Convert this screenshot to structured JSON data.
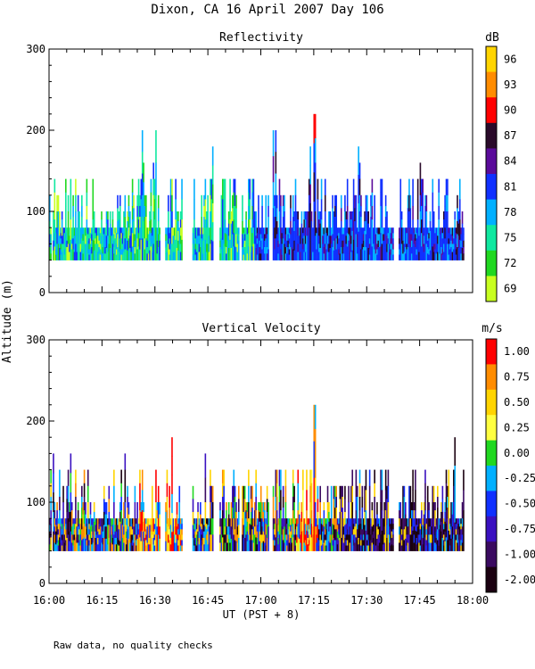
{
  "chart_data": [
    {
      "type": "heatmap",
      "figure_title": "Dixon, CA 16 April 2007  Day 106",
      "title": "Reflectivity",
      "ylabel": "Altitude (m)",
      "xlabel": "UT  (PST + 8)",
      "ylim": [
        0,
        300
      ],
      "yticks": [
        "0",
        "100",
        "200",
        "300"
      ],
      "xlim_minutes": [
        0,
        120
      ],
      "xticks": [
        "16:00",
        "16:15",
        "16:30",
        "16:45",
        "17:00",
        "17:15",
        "17:30",
        "17:45",
        "18:00"
      ],
      "colorbar": {
        "unit": "dB",
        "labels": [
          "96",
          "93",
          "90",
          "87",
          "84",
          "81",
          "78",
          "75",
          "72",
          "69"
        ],
        "colors": [
          "#ffd400",
          "#ff8c00",
          "#ff0000",
          "#2a0a2a",
          "#5a0a9a",
          "#1030ff",
          "#00b0ff",
          "#10e8a0",
          "#20d820",
          "#c8ff20"
        ]
      },
      "cloud_base_m": 40,
      "typical_top_m": 80,
      "peak": {
        "time_minutes": 75,
        "top_m": 220
      }
    },
    {
      "type": "heatmap",
      "title": "Vertical Velocity",
      "ylim": [
        0,
        300
      ],
      "yticks": [
        "0",
        "100",
        "200",
        "300"
      ],
      "colorbar": {
        "unit": "m/s",
        "labels": [
          "1.00",
          "0.75",
          "0.50",
          "0.25",
          "0.00",
          "-0.25",
          "-0.50",
          "-0.75",
          "-1.00",
          "-2.00"
        ],
        "colors": [
          "#ff0000",
          "#ff8c00",
          "#ffd400",
          "#ffff40",
          "#20d820",
          "#00b0ff",
          "#1030ff",
          "#3a10c0",
          "#3a0a60",
          "#1a0010"
        ]
      },
      "cloud_base_m": 40,
      "typical_top_m": 80,
      "peak": {
        "time_minutes": 75,
        "top_m": 220
      }
    }
  ],
  "footnote": "Raw data, no quality checks"
}
